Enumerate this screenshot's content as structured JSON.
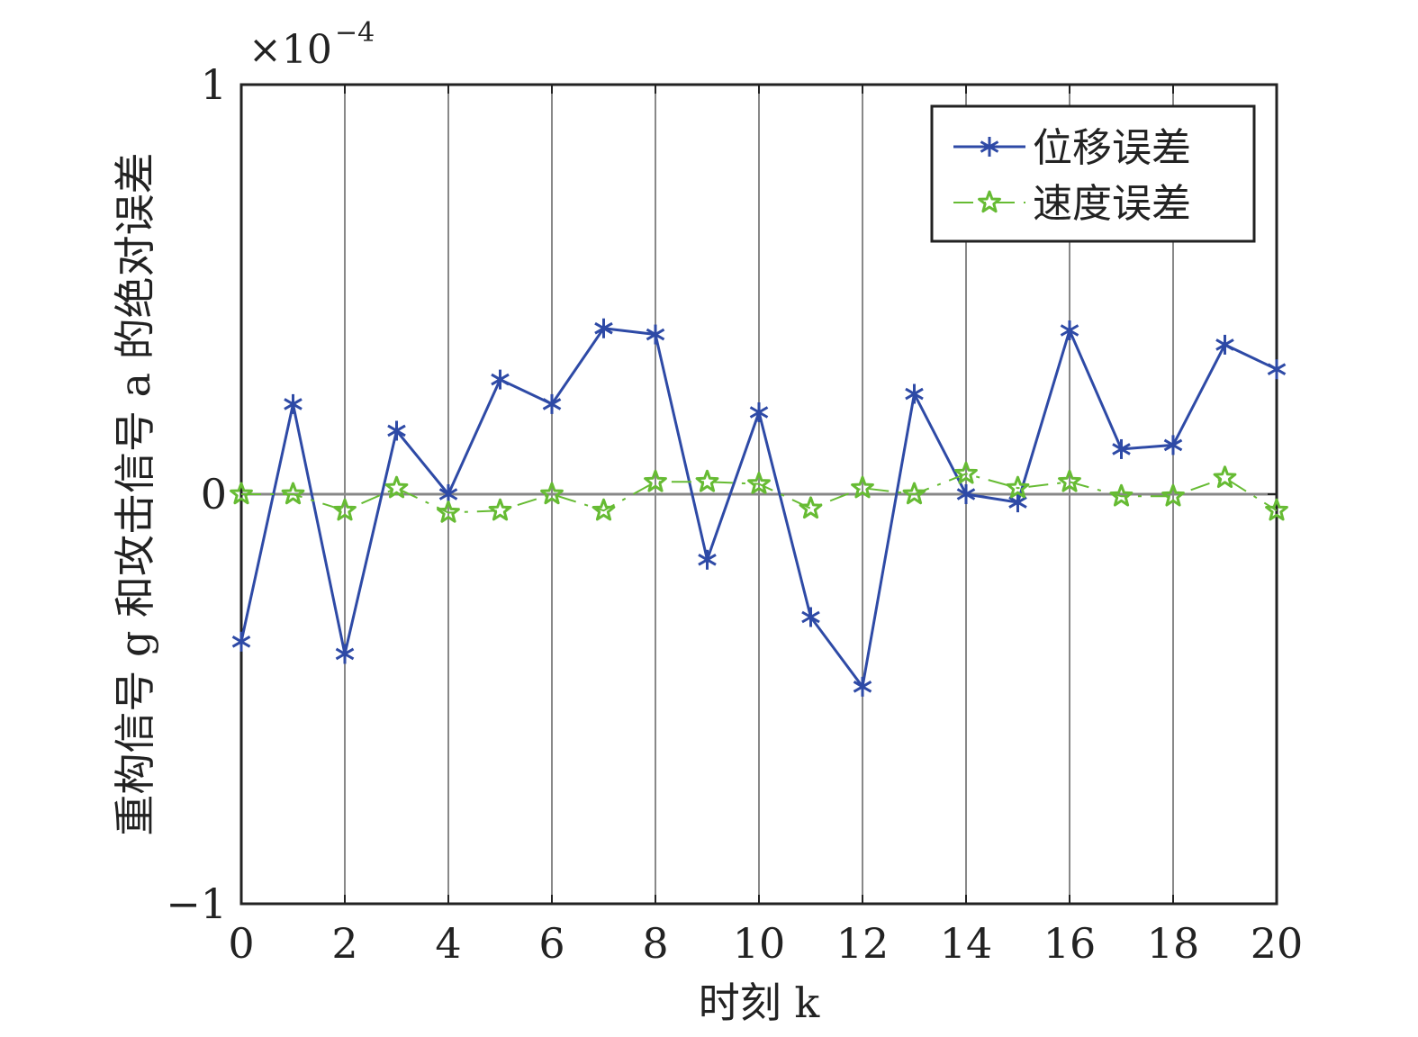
{
  "chart_data": {
    "type": "line",
    "x": [
      0,
      1,
      2,
      3,
      4,
      5,
      6,
      7,
      8,
      9,
      10,
      11,
      12,
      13,
      14,
      15,
      16,
      17,
      18,
      19,
      20
    ],
    "series": [
      {
        "name": "位移误差",
        "color": "#2e4aa6",
        "marker": "asterisk",
        "line": "solid",
        "values": [
          -0.36,
          0.22,
          -0.39,
          0.155,
          0.0,
          0.28,
          0.22,
          0.405,
          0.39,
          -0.16,
          0.2,
          -0.3,
          -0.47,
          0.245,
          0.0,
          -0.02,
          0.4,
          0.11,
          0.12,
          0.365,
          0.305
        ]
      },
      {
        "name": "速度误差",
        "color": "#66bb33",
        "marker": "pentagram",
        "line": "dashdot",
        "values": [
          0.0,
          0.0,
          -0.04,
          0.015,
          -0.045,
          -0.04,
          0.0,
          -0.04,
          0.03,
          0.03,
          0.025,
          -0.035,
          0.015,
          0.0,
          0.05,
          0.015,
          0.03,
          -0.005,
          -0.005,
          0.04,
          -0.04
        ]
      }
    ],
    "xlim": [
      0,
      20
    ],
    "ylim": [
      -1,
      1
    ],
    "xticks": [
      "0",
      "2",
      "4",
      "6",
      "8",
      "10",
      "12",
      "14",
      "16",
      "18",
      "20"
    ],
    "yticks": [
      "−1",
      "0",
      "1"
    ],
    "y_exponent_base": "×10",
    "y_exponent_power": "−4",
    "xlabel": "时刻 k",
    "ylabel": "重构信号 g 和攻击信号 a 的绝对误差",
    "grid": "vertical",
    "zero_line": true,
    "legend_position": "top-right"
  }
}
